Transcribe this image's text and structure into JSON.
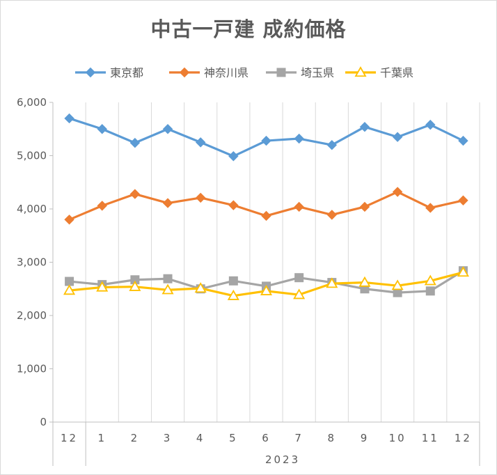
{
  "chart_data": {
    "type": "line",
    "title": "中古一戸建 成約価格",
    "xlabel": "",
    "ylabel": "",
    "categories": [
      "12",
      "1",
      "2",
      "3",
      "4",
      "5",
      "6",
      "7",
      "8",
      "9",
      "10",
      "11",
      "12"
    ],
    "year_group_label": "2023",
    "ylim": [
      0,
      6000
    ],
    "yticks": [
      0,
      1000,
      2000,
      3000,
      4000,
      5000,
      6000
    ],
    "ytick_labels": [
      "0",
      "1,000",
      "2,000",
      "3,000",
      "4,000",
      "5,000",
      "6,000"
    ],
    "grid": "vertical",
    "legend_position": "top",
    "series": [
      {
        "name": "東京都",
        "color": "#5b9bd5",
        "marker": "diamond",
        "values": [
          5700,
          5500,
          5240,
          5500,
          5250,
          4990,
          5280,
          5320,
          5200,
          5540,
          5350,
          5580,
          5280
        ]
      },
      {
        "name": "神奈川県",
        "color": "#ed7d31",
        "marker": "diamond",
        "values": [
          3800,
          4060,
          4280,
          4110,
          4210,
          4070,
          3870,
          4040,
          3890,
          4040,
          4320,
          4020,
          4160
        ]
      },
      {
        "name": "埼玉県",
        "color": "#a5a5a5",
        "marker": "square",
        "values": [
          2640,
          2580,
          2670,
          2690,
          2500,
          2650,
          2550,
          2710,
          2620,
          2500,
          2430,
          2460,
          2840
        ]
      },
      {
        "name": "千葉県",
        "color": "#ffc000",
        "marker": "triangle",
        "values": [
          2470,
          2530,
          2540,
          2480,
          2510,
          2370,
          2460,
          2390,
          2600,
          2620,
          2560,
          2650,
          2810
        ]
      }
    ]
  }
}
